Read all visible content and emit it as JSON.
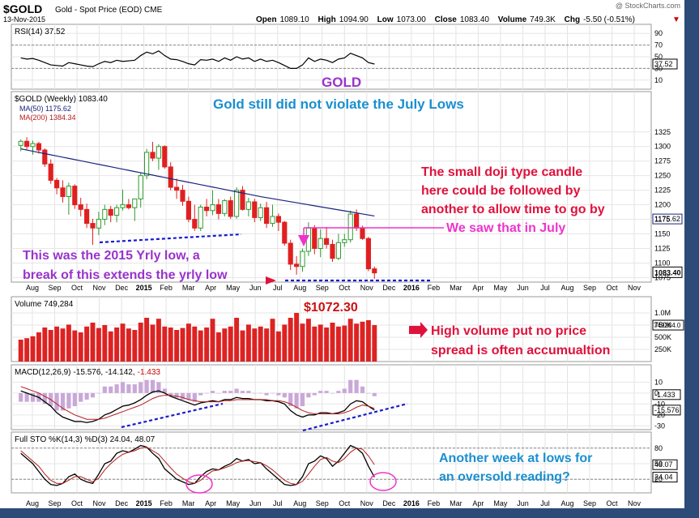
{
  "header": {
    "symbol": "$GOLD",
    "name": "Gold - Spot Price (EOD)  CME",
    "date": "13-Nov-2015",
    "open_label": "Open",
    "open": "1089.10",
    "high_label": "High",
    "high": "1094.90",
    "low_label": "Low",
    "low": "1073.00",
    "close_label": "Close",
    "close": "1083.40",
    "volume_label": "Volume",
    "volume": "749.3K",
    "chg_label": "Chg",
    "chg": "-5.50 (-0.51%)",
    "copyright": "@ StockCharts.com"
  },
  "panels": {
    "rsi_legend": "RSI(14) 37.52",
    "price_legend": "$GOLD (Weekly) 1083.40",
    "ma50_legend": "MA(50) 1175.62",
    "ma200_legend": "MA(200) 1384.34",
    "volume_legend": "Volume 749,284",
    "macd_name": "MACD(12,26,9)",
    "macd_values": "-15.576, -14.142,",
    "macd_hist": "-1.433",
    "sto_legend": "Full STO %K(14,3) %D(3) 24.04, 48.07"
  },
  "annotations": {
    "gold": "GOLD",
    "july_lows": "Gold still did not violate the July Lows",
    "doji_line1": "The small doji type candle",
    "doji_line2": "here could be followed by",
    "doji_line3": "another to allow time to go by",
    "saw_july": "We saw that in July",
    "yrly_low_line1": "This was the 2015 Yrly low,  a",
    "yrly_low_line2": "break of this extends the yrly low",
    "low_price": "$1072.30",
    "volume_line1": "High volume put no price",
    "volume_line2": "spread is often accumualtion",
    "sto_line1": "Another week at lows for",
    "sto_line2": "an oversold reading?"
  },
  "colors": {
    "up": "#2e9b2e",
    "down": "#e02020",
    "volume": "#dd2222",
    "ma50": "#1a237e",
    "ma200": "#b71c1c",
    "annotation_line": "#1a1ad0",
    "arrow": "#ee33cc",
    "circle": "#ee33cc"
  },
  "chart_data": {
    "type": "candlestick",
    "x_axis_labels": [
      "Aug",
      "Sep",
      "Oct",
      "Nov",
      "Dec",
      "2015",
      "Feb",
      "Mar",
      "Apr",
      "May",
      "Jun",
      "Jul",
      "Aug",
      "Sep",
      "Oct",
      "Nov",
      "Dec",
      "2016",
      "Feb",
      "Mar",
      "Apr",
      "May",
      "Jun",
      "Jul",
      "Aug",
      "Sep",
      "Oct",
      "Nov"
    ],
    "price": {
      "title": "$GOLD (Weekly) 1083.40",
      "y_ticks": [
        1075,
        1100,
        1125,
        1150,
        1175,
        1200,
        1225,
        1250,
        1275,
        1300,
        1325
      ],
      "ylim": [
        1070,
        1340
      ],
      "last": 1083.4,
      "last_label": "1083.40",
      "ma50_label": "1175.62",
      "weeks": [
        [
          1302,
          1312,
          1292,
          1309
        ],
        [
          1309,
          1316,
          1295,
          1300
        ],
        [
          1300,
          1310,
          1286,
          1305
        ],
        [
          1305,
          1308,
          1288,
          1294
        ],
        [
          1294,
          1297,
          1265,
          1270
        ],
        [
          1270,
          1278,
          1236,
          1242
        ],
        [
          1242,
          1246,
          1218,
          1229
        ],
        [
          1229,
          1242,
          1204,
          1214
        ],
        [
          1214,
          1238,
          1183,
          1232
        ],
        [
          1232,
          1235,
          1193,
          1200
        ],
        [
          1200,
          1212,
          1180,
          1192
        ],
        [
          1192,
          1202,
          1160,
          1168
        ],
        [
          1168,
          1176,
          1131,
          1160
        ],
        [
          1160,
          1188,
          1148,
          1175
        ],
        [
          1175,
          1200,
          1165,
          1192
        ],
        [
          1192,
          1198,
          1170,
          1182
        ],
        [
          1182,
          1200,
          1170,
          1195
        ],
        [
          1195,
          1226,
          1190,
          1200
        ],
        [
          1200,
          1210,
          1192,
          1195
        ],
        [
          1195,
          1210,
          1172,
          1210
        ],
        [
          1210,
          1256,
          1195,
          1250
        ],
        [
          1250,
          1296,
          1244,
          1290
        ],
        [
          1290,
          1308,
          1275,
          1280
        ],
        [
          1280,
          1304,
          1260,
          1300
        ],
        [
          1300,
          1302,
          1262,
          1265
        ],
        [
          1265,
          1273,
          1225,
          1230
        ],
        [
          1230,
          1245,
          1210,
          1225
        ],
        [
          1225,
          1234,
          1198,
          1206
        ],
        [
          1206,
          1214,
          1170,
          1175
        ],
        [
          1175,
          1200,
          1155,
          1160
        ],
        [
          1160,
          1200,
          1155,
          1196
        ],
        [
          1196,
          1210,
          1180,
          1190
        ],
        [
          1190,
          1225,
          1182,
          1200
        ],
        [
          1200,
          1210,
          1175,
          1185
        ],
        [
          1185,
          1210,
          1180,
          1207
        ],
        [
          1207,
          1214,
          1176,
          1180
        ],
        [
          1180,
          1230,
          1176,
          1225
        ],
        [
          1225,
          1232,
          1190,
          1192
        ],
        [
          1192,
          1212,
          1180,
          1205
        ],
        [
          1205,
          1210,
          1170,
          1178
        ],
        [
          1178,
          1202,
          1172,
          1195
        ],
        [
          1195,
          1205,
          1160,
          1168
        ],
        [
          1168,
          1200,
          1162,
          1180
        ],
        [
          1180,
          1185,
          1155,
          1170
        ],
        [
          1170,
          1172,
          1130,
          1134
        ],
        [
          1134,
          1140,
          1088,
          1098
        ],
        [
          1098,
          1112,
          1080,
          1094
        ],
        [
          1094,
          1125,
          1085,
          1120
        ],
        [
          1120,
          1170,
          1112,
          1160
        ],
        [
          1160,
          1165,
          1115,
          1125
        ],
        [
          1125,
          1158,
          1110,
          1142
        ],
        [
          1142,
          1162,
          1125,
          1132
        ],
        [
          1132,
          1140,
          1102,
          1108
        ],
        [
          1108,
          1150,
          1105,
          1135
        ],
        [
          1135,
          1150,
          1128,
          1140
        ],
        [
          1140,
          1190,
          1135,
          1184
        ],
        [
          1184,
          1192,
          1155,
          1160
        ],
        [
          1160,
          1164,
          1140,
          1142
        ],
        [
          1142,
          1145,
          1086,
          1090
        ],
        [
          1090,
          1094,
          1073,
          1083
        ]
      ]
    },
    "rsi": {
      "label": "RSI(14) 37.52",
      "y_ticks": [
        10,
        30,
        50,
        70,
        90
      ],
      "value": 37.52,
      "values": [
        48,
        46,
        47,
        44,
        40,
        36,
        35,
        34,
        40,
        38,
        36,
        34,
        33,
        38,
        42,
        40,
        44,
        42,
        43,
        44,
        52,
        58,
        55,
        60,
        52,
        46,
        45,
        42,
        38,
        36,
        45,
        44,
        46,
        42,
        48,
        44,
        50,
        46,
        48,
        42,
        46,
        42,
        44,
        40,
        35,
        30,
        30,
        36,
        48,
        42,
        46,
        44,
        40,
        46,
        48,
        56,
        52,
        48,
        40,
        37.52
      ]
    },
    "volume": {
      "label": "Volume 749,284",
      "y_ticks": [
        "250K",
        "500K",
        "750K",
        "1.0M"
      ],
      "last_label": "749284.0",
      "values": [
        450,
        480,
        520,
        600,
        700,
        650,
        720,
        680,
        760,
        640,
        600,
        720,
        800,
        690,
        750,
        620,
        700,
        780,
        680,
        650,
        800,
        900,
        760,
        880,
        720,
        700,
        650,
        690,
        780,
        720,
        640,
        700,
        880,
        600,
        680,
        720,
        900,
        640,
        760,
        680,
        720,
        680,
        880,
        620,
        760,
        900,
        1000,
        780,
        880,
        720,
        760,
        700,
        800,
        720,
        740,
        880,
        780,
        820,
        850,
        749.284
      ]
    },
    "macd": {
      "label": "MACD(12,26,9)",
      "y_ticks": [
        -30,
        -20,
        -10,
        0,
        10
      ],
      "macd_last": -15.576,
      "signal_last": -14.142,
      "hist_last": -1.433,
      "macd": [
        2,
        0,
        -2,
        -4,
        -8,
        -12,
        -18,
        -22,
        -24,
        -26,
        -26,
        -27,
        -26,
        -24,
        -20,
        -18,
        -15,
        -12,
        -11,
        -9,
        -6,
        -2,
        1,
        2,
        0,
        -3,
        -5,
        -7,
        -9,
        -11,
        -9,
        -8,
        -7,
        -8,
        -6,
        -6,
        -4,
        -5,
        -5,
        -6,
        -6,
        -7,
        -7,
        -8,
        -10,
        -16,
        -20,
        -22,
        -20,
        -20,
        -18,
        -18,
        -19,
        -18,
        -16,
        -10,
        -7,
        -8,
        -12,
        -15.576
      ],
      "signal": [
        6,
        4,
        2,
        0,
        -3,
        -6,
        -10,
        -14,
        -17,
        -20,
        -22,
        -24,
        -24,
        -24,
        -23,
        -21,
        -19,
        -17,
        -15,
        -13,
        -11,
        -8,
        -5,
        -3,
        -2,
        -2,
        -3,
        -4,
        -6,
        -7,
        -8,
        -8,
        -8,
        -8,
        -7,
        -7,
        -6,
        -6,
        -6,
        -6,
        -6,
        -6,
        -7,
        -7,
        -8,
        -10,
        -13,
        -16,
        -18,
        -19,
        -19,
        -19,
        -19,
        -19,
        -18,
        -16,
        -13,
        -11,
        -12,
        -14.142
      ]
    },
    "sto": {
      "label": "Full STO %K(14,3) %D(3) 24.04, 48.07",
      "y_ticks": [
        20,
        50,
        80
      ],
      "k_last": 24.04,
      "d_last": 48.07,
      "k": [
        70,
        60,
        50,
        35,
        20,
        10,
        8,
        12,
        25,
        30,
        20,
        15,
        12,
        30,
        50,
        55,
        70,
        75,
        72,
        78,
        85,
        82,
        70,
        60,
        40,
        30,
        20,
        15,
        10,
        12,
        25,
        35,
        40,
        38,
        45,
        50,
        60,
        55,
        58,
        50,
        52,
        40,
        30,
        20,
        10,
        8,
        10,
        25,
        50,
        55,
        65,
        60,
        45,
        55,
        70,
        85,
        80,
        70,
        45,
        24.04
      ],
      "d": [
        75,
        65,
        55,
        45,
        30,
        18,
        12,
        12,
        18,
        25,
        25,
        20,
        15,
        22,
        38,
        50,
        60,
        68,
        72,
        75,
        80,
        82,
        75,
        68,
        55,
        42,
        30,
        22,
        15,
        12,
        18,
        28,
        36,
        38,
        42,
        46,
        52,
        55,
        56,
        54,
        52,
        46,
        38,
        28,
        18,
        12,
        10,
        16,
        30,
        45,
        58,
        62,
        55,
        52,
        60,
        72,
        80,
        78,
        65,
        48.07
      ]
    }
  }
}
